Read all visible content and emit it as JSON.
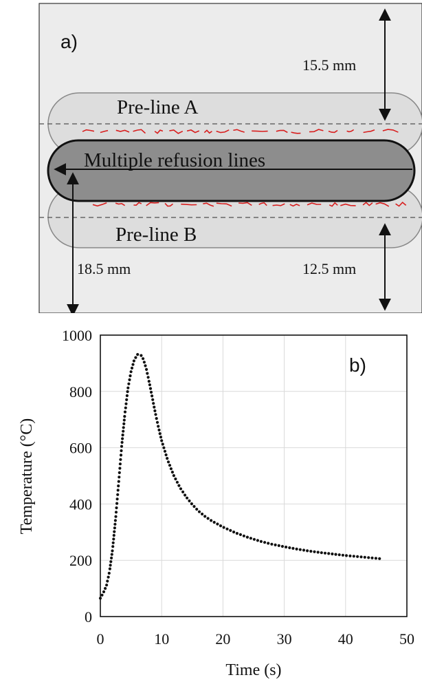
{
  "panel_a": {
    "label": "a)",
    "pre_line_a": "Pre-line A",
    "pre_line_b": "Pre-line B",
    "center_line": "Multiple refusion lines",
    "dim_top_right": "15.5 mm",
    "dim_bottom_right": "12.5 mm",
    "dim_left": "18.5 mm",
    "colors": {
      "background": "#ececec",
      "pre_line_fill": "#dddddd",
      "refusion_fill": "#8d8d8d",
      "crack_color": "#d81e1e"
    }
  },
  "panel_b": {
    "label": "b)"
  },
  "chart_data": {
    "type": "scatter",
    "xlabel": "Time (s)",
    "ylabel": "Temperature (°C)",
    "xlim": [
      0,
      50
    ],
    "ylim": [
      0,
      1000
    ],
    "xticks": [
      0,
      10,
      20,
      30,
      40,
      50
    ],
    "yticks": [
      0,
      200,
      400,
      600,
      800,
      1000
    ],
    "grid": true,
    "x": [
      0.0,
      0.5,
      1.0,
      1.5,
      2.0,
      2.5,
      3.0,
      3.5,
      4.0,
      4.5,
      5.0,
      5.5,
      6.0,
      6.3,
      6.6,
      7.0,
      7.5,
      8.0,
      8.5,
      9.0,
      9.5,
      10.0,
      11.0,
      12.0,
      13.0,
      14.0,
      15.0,
      16.0,
      17.0,
      18.0,
      19.0,
      20.0,
      22.0,
      24.0,
      26.0,
      28.0,
      30.0,
      32.0,
      34.0,
      36.0,
      38.0,
      40.0,
      42.0,
      44.0,
      46.0
    ],
    "y": [
      65,
      85,
      110,
      160,
      240,
      350,
      480,
      610,
      720,
      810,
      870,
      910,
      930,
      935,
      930,
      915,
      880,
      830,
      775,
      720,
      670,
      625,
      555,
      500,
      458,
      425,
      398,
      375,
      357,
      342,
      330,
      318,
      298,
      282,
      268,
      257,
      248,
      240,
      233,
      227,
      222,
      217,
      213,
      209,
      205
    ]
  }
}
